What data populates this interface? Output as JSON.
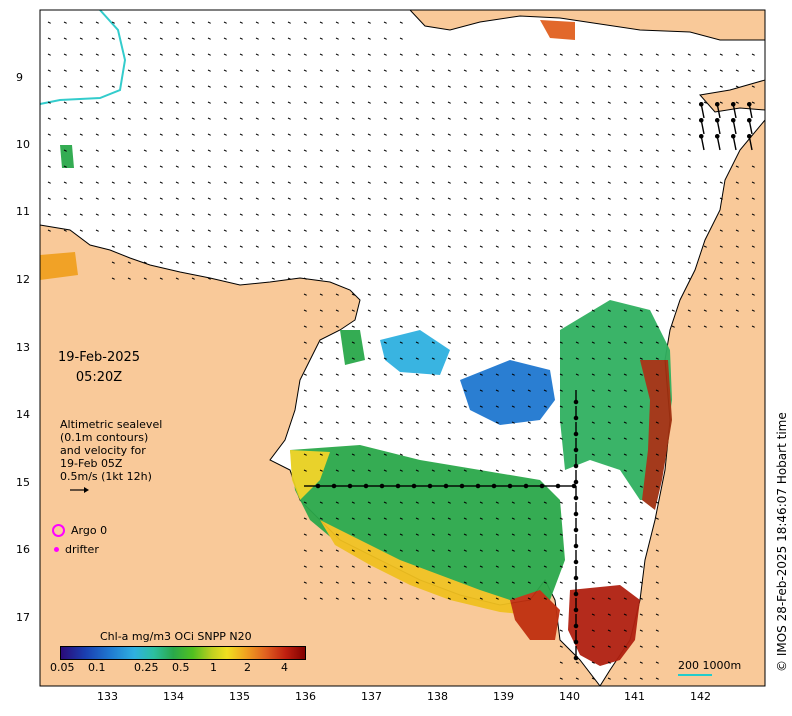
{
  "header": {
    "date": "19-Feb-2025",
    "time": "05:20Z"
  },
  "legend": {
    "altimetry_lines": [
      "Altimetric sealevel",
      "(0.1m contours)",
      "and velocity for",
      "19-Feb 05Z",
      "0.5m/s (1kt 12h)"
    ],
    "argo_label": "Argo 0",
    "drifter_label": "drifter"
  },
  "colorbar": {
    "title": "Chl-a mg/m3 OCi SNPP N20",
    "ticks": [
      "0.05",
      "0.1",
      "0.25",
      "0.5",
      "1",
      "2",
      "4"
    ]
  },
  "axes": {
    "x_ticks": [
      "133",
      "134",
      "135",
      "136",
      "137",
      "138",
      "139",
      "140",
      "141",
      "142"
    ],
    "y_ticks": [
      "9",
      "10",
      "11",
      "12",
      "13",
      "14",
      "15",
      "16",
      "17"
    ]
  },
  "scale_bar": {
    "label": "200  1000m"
  },
  "credit": "© IMOS 28-Feb-2025 18:46:07 Hobart time",
  "colors": {
    "land": "#f9c999",
    "sea": "#ffffff",
    "argo": "#ff00ff",
    "bathy": "#33cccc"
  },
  "icons": [
    "argo-ring-icon",
    "drifter-dot-icon",
    "velocity-arrow-icon"
  ]
}
